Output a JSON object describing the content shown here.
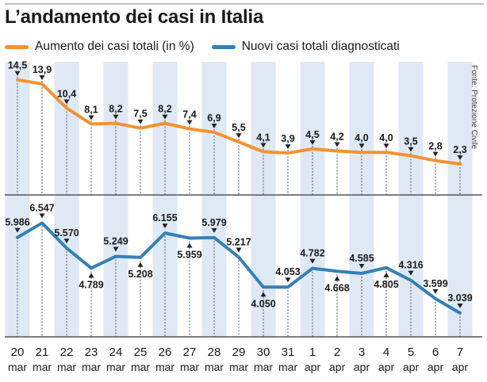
{
  "chart_data": {
    "type": "line",
    "title": "L’andamento dei casi in Italia",
    "source": "Fonte: Protezione Civile",
    "colors": {
      "percent": "#f5922f",
      "new_cases": "#3380b8",
      "stripe": "#dfe9f6",
      "text": "#1a1a1a"
    },
    "categories": [
      {
        "day": "20",
        "month": "mar"
      },
      {
        "day": "21",
        "month": "mar"
      },
      {
        "day": "22",
        "month": "mar"
      },
      {
        "day": "23",
        "month": "mar"
      },
      {
        "day": "24",
        "month": "mar"
      },
      {
        "day": "25",
        "month": "mar"
      },
      {
        "day": "26",
        "month": "mar"
      },
      {
        "day": "27",
        "month": "mar"
      },
      {
        "day": "28",
        "month": "mar"
      },
      {
        "day": "29",
        "month": "mar"
      },
      {
        "day": "30",
        "month": "mar"
      },
      {
        "day": "31",
        "month": "mar"
      },
      {
        "day": "1",
        "month": "apr"
      },
      {
        "day": "2",
        "month": "apr"
      },
      {
        "day": "3",
        "month": "apr"
      },
      {
        "day": "4",
        "month": "apr"
      },
      {
        "day": "5",
        "month": "apr"
      },
      {
        "day": "6",
        "month": "apr"
      },
      {
        "day": "7",
        "month": "apr"
      }
    ],
    "series": [
      {
        "name": "Aumento dei casi totali (in %)",
        "key": "percent",
        "values": [
          14.5,
          13.9,
          10.4,
          8.1,
          8.2,
          7.5,
          8.2,
          7.4,
          6.9,
          5.5,
          4.1,
          3.9,
          4.5,
          4.2,
          4.0,
          4.0,
          3.5,
          2.8,
          2.3
        ],
        "labels": [
          "14,5",
          "13,9",
          "10,4",
          "8,1",
          "8,2",
          "7,5",
          "8,2",
          "7,4",
          "6,9",
          "5,5",
          "4,1",
          "3,9",
          "4,5",
          "4,2",
          "4,0",
          "4,0",
          "3,5",
          "2,8",
          "2,3"
        ],
        "ylim": [
          1.5,
          15.5
        ]
      },
      {
        "name": "Nuovi casi totali diagnosticati",
        "key": "new_cases",
        "values": [
          5986,
          6547,
          5570,
          4789,
          5249,
          5208,
          6155,
          5959,
          5979,
          5217,
          4050,
          4053,
          4782,
          4668,
          4585,
          4805,
          4316,
          3599,
          3039
        ],
        "labels": [
          "5.986",
          "6.547",
          "5.570",
          "4.789",
          "5.249",
          "5.208",
          "6.155",
          "5.959",
          "5.979",
          "5.217",
          "4.050",
          "4.053",
          "4.782",
          "4.668",
          "4.585",
          "4.805",
          "4.316",
          "3.599",
          "3.039"
        ],
        "label_side": [
          "above",
          "above",
          "above",
          "below",
          "above",
          "below",
          "above",
          "below",
          "above",
          "above",
          "below",
          "above",
          "above",
          "below",
          "above",
          "below",
          "above",
          "above",
          "above"
        ],
        "ylim": [
          2700,
          6900
        ]
      }
    ]
  }
}
